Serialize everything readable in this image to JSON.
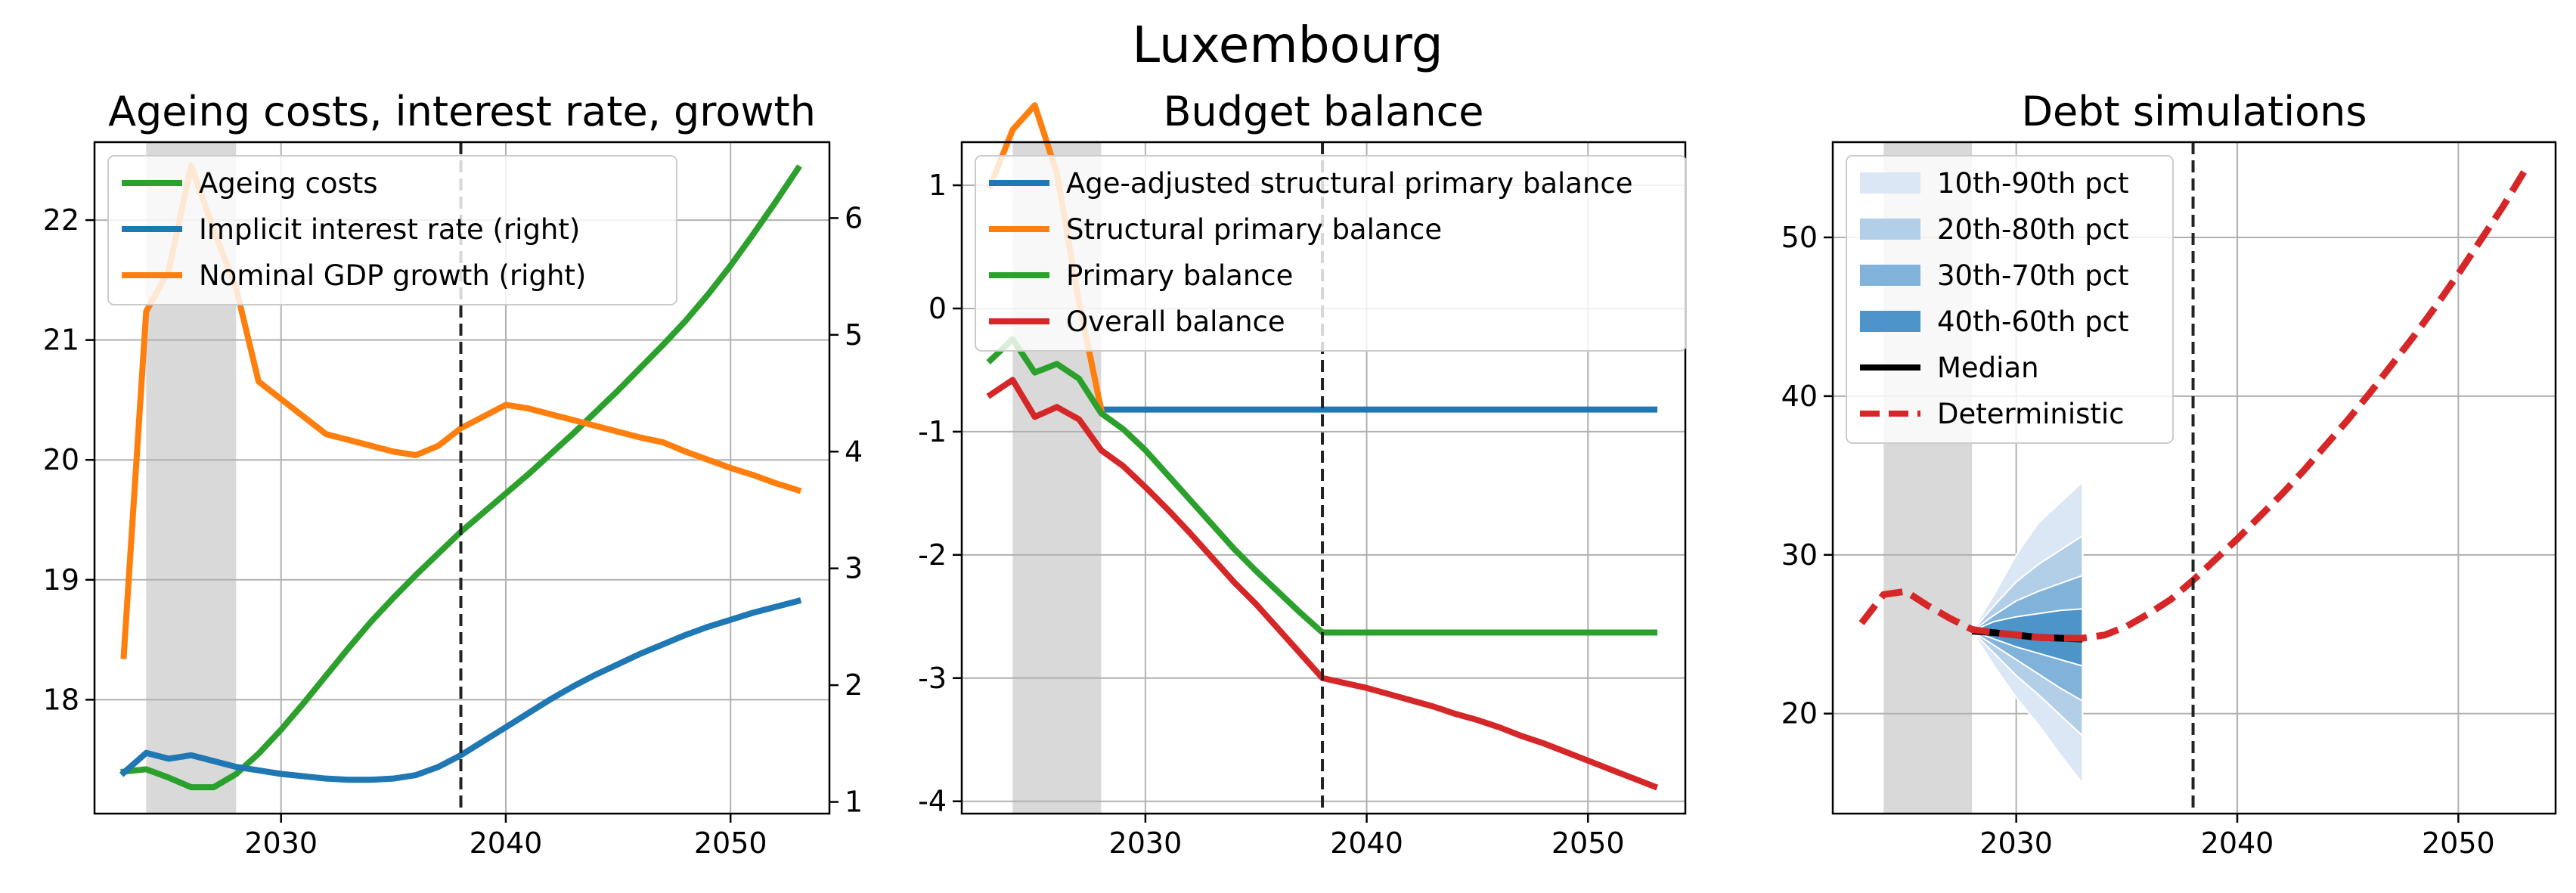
{
  "figure": {
    "title": "Luxembourg"
  },
  "chart_data": [
    {
      "type": "line",
      "title": "Ageing costs, interest rate, growth",
      "xlim": [
        2021.7,
        2054.4
      ],
      "ylim": [
        17.05,
        22.65
      ],
      "y2lim": [
        0.9,
        6.65
      ],
      "x_ticks": [
        2030,
        2040,
        2050
      ],
      "y_ticks": [
        18,
        19,
        20,
        21,
        22
      ],
      "y2_ticks": [
        1,
        2,
        3,
        4,
        5,
        6
      ],
      "shaded_region": [
        2024,
        2028
      ],
      "vline": 2038,
      "grid": true,
      "legend_position": "upper-left",
      "series": [
        {
          "name": "Ageing costs",
          "axis": "left",
          "color": "#2ca02c",
          "x": [
            2023,
            2024,
            2025,
            2026,
            2027,
            2028,
            2029,
            2030,
            2031,
            2032,
            2033,
            2034,
            2035,
            2036,
            2037,
            2038,
            2039,
            2040,
            2041,
            2042,
            2043,
            2044,
            2045,
            2046,
            2047,
            2048,
            2049,
            2050,
            2051,
            2052,
            2053
          ],
          "values": [
            17.4,
            17.42,
            17.35,
            17.27,
            17.27,
            17.38,
            17.55,
            17.75,
            17.97,
            18.2,
            18.43,
            18.65,
            18.85,
            19.04,
            19.22,
            19.4,
            19.56,
            19.72,
            19.88,
            20.05,
            20.22,
            20.4,
            20.58,
            20.77,
            20.96,
            21.16,
            21.38,
            21.62,
            21.88,
            22.15,
            22.43
          ]
        },
        {
          "name": "Implicit interest rate (right)",
          "axis": "right",
          "color": "#1f77b4",
          "x": [
            2023,
            2024,
            2025,
            2026,
            2027,
            2028,
            2029,
            2030,
            2031,
            2032,
            2033,
            2034,
            2035,
            2036,
            2037,
            2038,
            2039,
            2040,
            2041,
            2042,
            2043,
            2044,
            2045,
            2046,
            2047,
            2048,
            2049,
            2050,
            2051,
            2052,
            2053
          ],
          "values": [
            1.25,
            1.42,
            1.37,
            1.4,
            1.35,
            1.3,
            1.27,
            1.24,
            1.22,
            1.2,
            1.19,
            1.19,
            1.2,
            1.23,
            1.3,
            1.4,
            1.52,
            1.64,
            1.76,
            1.88,
            1.99,
            2.09,
            2.18,
            2.27,
            2.35,
            2.43,
            2.5,
            2.56,
            2.62,
            2.67,
            2.72
          ]
        },
        {
          "name": "Nominal GDP growth (right)",
          "axis": "right",
          "color": "#ff7f0e",
          "x": [
            2023,
            2024,
            2025,
            2026,
            2027,
            2028,
            2029,
            2030,
            2031,
            2032,
            2033,
            2034,
            2035,
            2036,
            2037,
            2038,
            2039,
            2040,
            2041,
            2042,
            2043,
            2044,
            2045,
            2046,
            2047,
            2048,
            2049,
            2050,
            2051,
            2052,
            2053
          ],
          "values": [
            2.25,
            5.2,
            5.55,
            6.45,
            5.9,
            5.4,
            4.6,
            4.45,
            4.3,
            4.15,
            4.1,
            4.05,
            4.0,
            3.97,
            4.05,
            4.2,
            4.3,
            4.4,
            4.37,
            4.32,
            4.27,
            4.22,
            4.17,
            4.12,
            4.08,
            4.0,
            3.93,
            3.86,
            3.8,
            3.73,
            3.67
          ]
        }
      ]
    },
    {
      "type": "line",
      "title": "Budget balance",
      "xlim": [
        2021.7,
        2054.4
      ],
      "ylim": [
        -4.1,
        1.35
      ],
      "x_ticks": [
        2030,
        2040,
        2050
      ],
      "y_ticks": [
        -4,
        -3,
        -2,
        -1,
        0,
        1
      ],
      "y_tick_labels": [
        "-4",
        "-3",
        "-2",
        "-1",
        "0",
        "1"
      ],
      "shaded_region": [
        2024,
        2028
      ],
      "vline": 2038,
      "grid": true,
      "legend_position": "upper-left",
      "series": [
        {
          "name": "Age-adjusted structural primary balance",
          "color": "#1f77b4",
          "x": [
            2028,
            2038,
            2053
          ],
          "values": [
            -0.82,
            -0.82,
            -0.82
          ]
        },
        {
          "name": "Structural primary balance",
          "color": "#ff7f0e",
          "x": [
            2023,
            2024,
            2025,
            2026,
            2027,
            2028
          ],
          "values": [
            1.0,
            1.45,
            1.65,
            1.1,
            0.05,
            -0.82
          ]
        },
        {
          "name": "Primary balance",
          "color": "#2ca02c",
          "x": [
            2023,
            2024,
            2025,
            2026,
            2027,
            2028,
            2029,
            2030,
            2031,
            2032,
            2033,
            2034,
            2035,
            2036,
            2037,
            2038,
            2039,
            2053
          ],
          "values": [
            -0.42,
            -0.25,
            -0.52,
            -0.45,
            -0.57,
            -0.85,
            -0.98,
            -1.15,
            -1.35,
            -1.55,
            -1.75,
            -1.95,
            -2.13,
            -2.3,
            -2.47,
            -2.63,
            -2.63,
            -2.63
          ]
        },
        {
          "name": "Overall balance",
          "color": "#d62728",
          "x": [
            2023,
            2024,
            2025,
            2026,
            2027,
            2028,
            2029,
            2030,
            2031,
            2032,
            2033,
            2034,
            2035,
            2036,
            2037,
            2038,
            2039,
            2040,
            2041,
            2042,
            2043,
            2044,
            2045,
            2046,
            2047,
            2048,
            2049,
            2050,
            2051,
            2052,
            2053
          ],
          "values": [
            -0.7,
            -0.58,
            -0.88,
            -0.8,
            -0.9,
            -1.15,
            -1.28,
            -1.45,
            -1.63,
            -1.82,
            -2.02,
            -2.22,
            -2.4,
            -2.6,
            -2.8,
            -3.0,
            -3.04,
            -3.08,
            -3.13,
            -3.18,
            -3.23,
            -3.29,
            -3.34,
            -3.4,
            -3.47,
            -3.53,
            -3.6,
            -3.67,
            -3.74,
            -3.81,
            -3.88
          ]
        }
      ]
    },
    {
      "type": "area",
      "title": "Debt simulations",
      "xlim": [
        2021.7,
        2054.4
      ],
      "ylim": [
        13.7,
        56.0
      ],
      "x_ticks": [
        2030,
        2040,
        2050
      ],
      "y_ticks": [
        20,
        30,
        40,
        50
      ],
      "shaded_region": [
        2024,
        2028
      ],
      "vline": 2038,
      "grid": true,
      "legend_position": "upper-left",
      "fan": {
        "x": [
          2028,
          2029,
          2030,
          2031,
          2032,
          2033
        ],
        "bands": [
          {
            "name": "10th-90th pct",
            "color": "#dbe7f5",
            "lower": [
              25.2,
              23.0,
              21.0,
              19.3,
              17.4,
              15.6
            ],
            "upper": [
              25.2,
              27.5,
              30.0,
              32.0,
              33.3,
              34.6
            ]
          },
          {
            "name": "20th-80th pct",
            "color": "#b3cfe8",
            "lower": [
              25.2,
              23.8,
              22.4,
              21.2,
              19.9,
              18.6
            ],
            "upper": [
              25.2,
              26.8,
              28.3,
              29.4,
              30.3,
              31.2
            ]
          },
          {
            "name": "30th-70th pct",
            "color": "#80b2da",
            "lower": [
              25.2,
              24.3,
              23.4,
              22.5,
              21.6,
              20.8
            ],
            "upper": [
              25.2,
              26.2,
              27.1,
              27.7,
              28.2,
              28.7
            ]
          },
          {
            "name": "40th-60th pct",
            "color": "#4d94cb",
            "lower": [
              25.2,
              24.7,
              24.2,
              23.8,
              23.4,
              23.0
            ],
            "upper": [
              25.2,
              25.8,
              26.1,
              26.3,
              26.5,
              26.6
            ]
          }
        ]
      },
      "series": [
        {
          "name": "Median",
          "color": "#000000",
          "x": [
            2028,
            2029,
            2030,
            2031,
            2032,
            2033
          ],
          "values": [
            25.2,
            25.1,
            24.95,
            24.8,
            24.75,
            24.7
          ]
        },
        {
          "name": "Deterministic",
          "color": "#d62728",
          "dashed": true,
          "x": [
            2023,
            2024,
            2025,
            2026,
            2027,
            2028,
            2029,
            2030,
            2031,
            2032,
            2033,
            2034,
            2035,
            2036,
            2037,
            2038,
            2039,
            2040,
            2041,
            2042,
            2043,
            2044,
            2045,
            2046,
            2047,
            2048,
            2049,
            2050,
            2051,
            2052,
            2053
          ],
          "values": [
            25.7,
            27.5,
            27.7,
            26.8,
            26.0,
            25.3,
            25.1,
            24.95,
            24.8,
            24.75,
            24.75,
            24.95,
            25.5,
            26.3,
            27.2,
            28.4,
            29.7,
            31.0,
            32.4,
            33.8,
            35.3,
            36.9,
            38.5,
            40.2,
            42.0,
            43.8,
            45.7,
            47.7,
            49.8,
            51.9,
            54.2
          ]
        }
      ]
    }
  ]
}
